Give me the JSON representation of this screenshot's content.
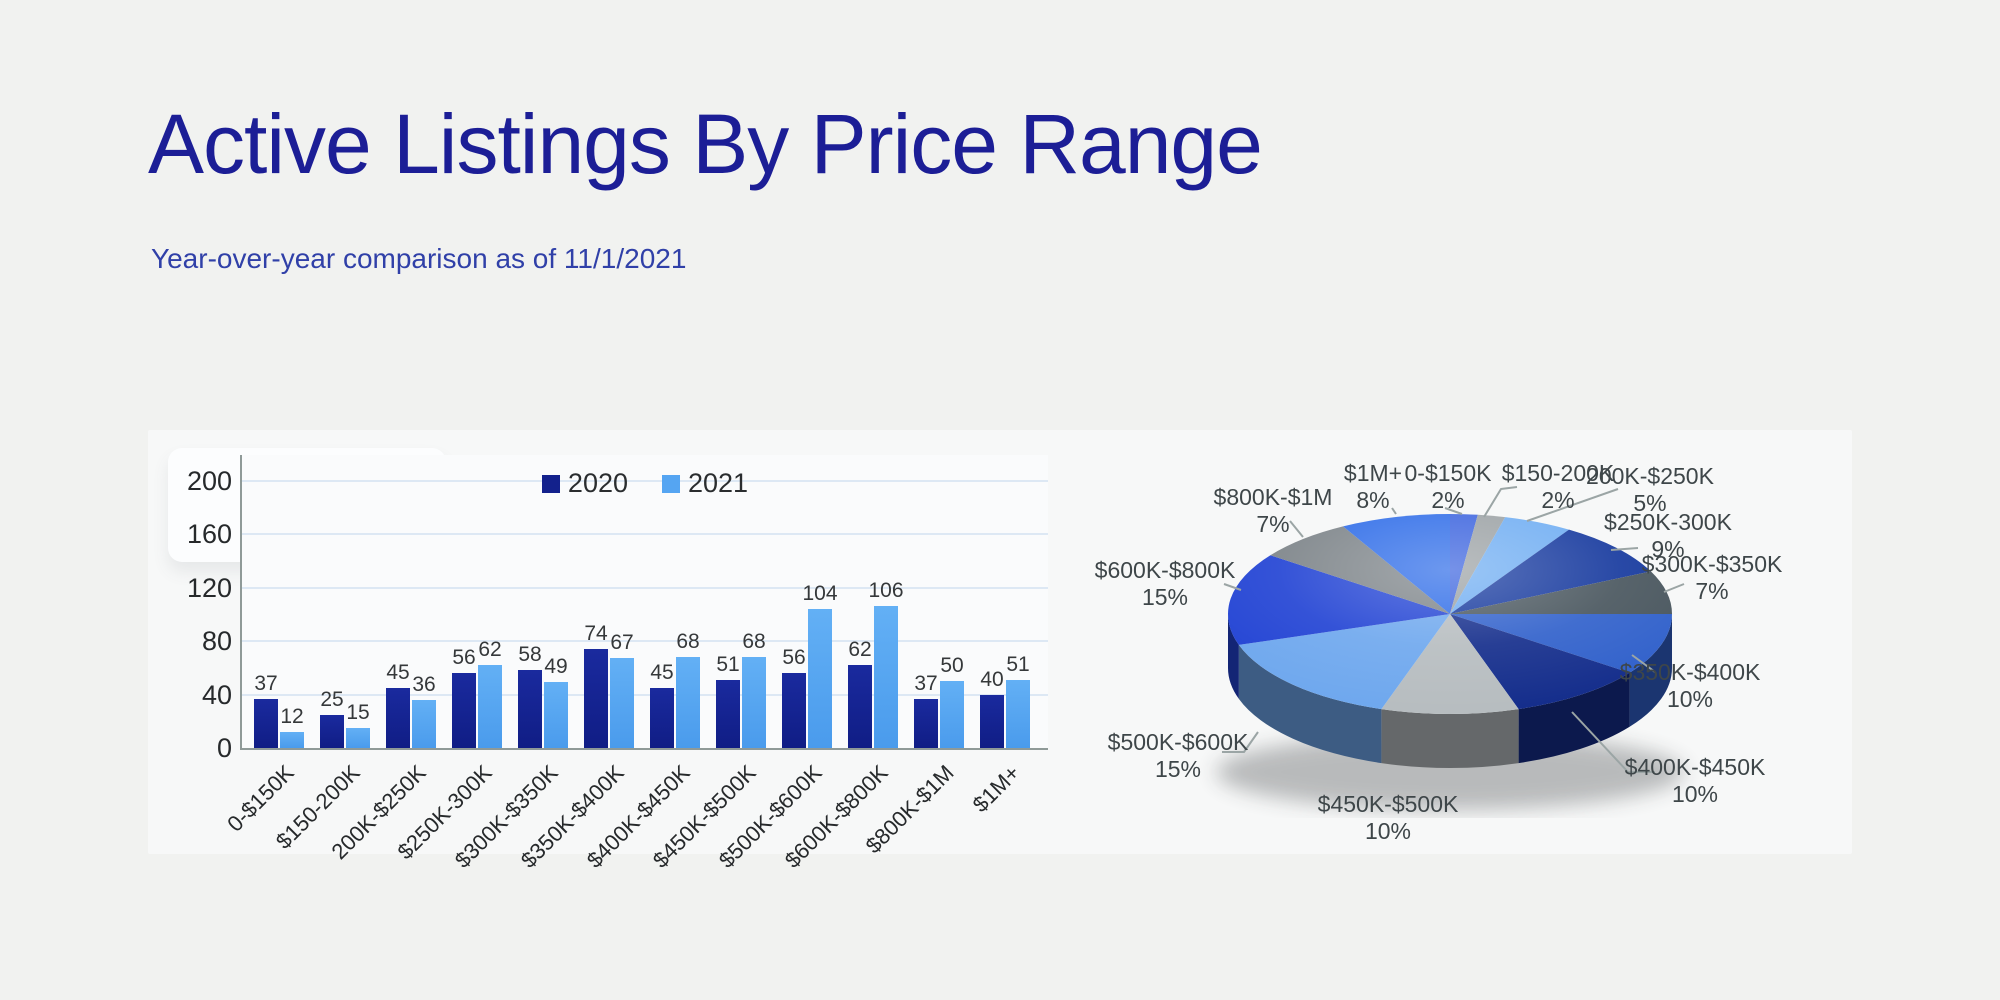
{
  "header": {
    "title": "Active Listings By Price Range",
    "subtitle": "Year-over-year comparison as of 11/1/2021"
  },
  "colors": {
    "title_text": "#1c1e96",
    "subtitle_text": "#3040a8",
    "series_2020": "#13218c",
    "series_2021": "#55a5f2",
    "leader_line": "#9ba5a5",
    "pie_label_text": "#3e4649"
  },
  "chart_data": [
    {
      "type": "bar",
      "title": "",
      "categories": [
        "0-$150K",
        "$150-200K",
        "200K-$250K",
        "$250K-300K",
        "$300K-$350K",
        "$350K-$400K",
        "$400K-$450K",
        "$450K-$500K",
        "$500K-$600K",
        "$600K-$800K",
        "$800K-$1M",
        "$1M+"
      ],
      "series": [
        {
          "name": "2020",
          "color": "#13218c",
          "values": [
            37,
            25,
            45,
            56,
            58,
            74,
            45,
            51,
            56,
            62,
            37,
            40
          ]
        },
        {
          "name": "2021",
          "color": "#55a5f2",
          "values": [
            12,
            15,
            36,
            62,
            49,
            67,
            68,
            68,
            104,
            106,
            50,
            51
          ]
        }
      ],
      "xlabel": "",
      "ylabel": "",
      "ylim": [
        0,
        200
      ],
      "yticks": [
        0,
        40,
        80,
        120,
        160,
        200
      ],
      "grid": true,
      "legend_position": "top-center"
    },
    {
      "type": "pie",
      "style": "3d",
      "unit": "%",
      "start_angle_deg": 0,
      "direction": "clockwise",
      "slices": [
        {
          "label": "0-$150K",
          "pct": 2,
          "color": "#3b63de"
        },
        {
          "label": "$150-200K",
          "pct": 2,
          "color": "#9ba1a4"
        },
        {
          "label": "200K-$250K",
          "pct": 5,
          "color": "#6fadf2"
        },
        {
          "label": "$250K-300K",
          "pct": 9,
          "color": "#16399e"
        },
        {
          "label": "$300K-$350K",
          "pct": 7,
          "color": "#49565e"
        },
        {
          "label": "$350K-$400K",
          "pct": 10,
          "color": "#3161cb"
        },
        {
          "label": "$400K-$450K",
          "pct": 10,
          "color": "#152e8c"
        },
        {
          "label": "$450K-$500K",
          "pct": 10,
          "color": "#b7bdc0"
        },
        {
          "label": "$500K-$600K",
          "pct": 15,
          "color": "#6fa8ee"
        },
        {
          "label": "$600K-$800K",
          "pct": 15,
          "color": "#2344d4"
        },
        {
          "label": "$800K-$1M",
          "pct": 7,
          "color": "#7d8489"
        },
        {
          "label": "$1M+",
          "pct": 8,
          "color": "#2e6ce8"
        }
      ]
    }
  ]
}
